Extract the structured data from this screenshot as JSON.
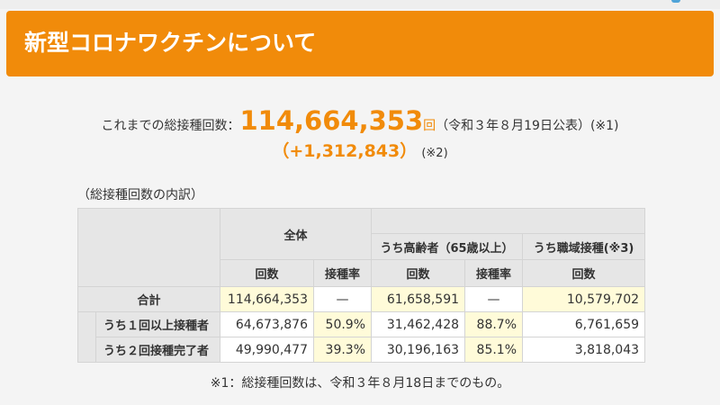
{
  "header": {
    "title": "新型コロナワクチンについて"
  },
  "summary": {
    "label": "これまでの総接種回数：",
    "total": "114,664,353",
    "unit": "回",
    "note": "（令和３年８月19日公表）(※1)",
    "increase": "（+1,312,843）",
    "increase_note": "(※2)"
  },
  "breakdown": {
    "heading": "（総接種回数の内訳）",
    "groups": {
      "overall": "全体",
      "elderly": "うち高齢者（65歳以上）",
      "workplace": "うち職域接種(※3)"
    },
    "columns": {
      "count": "回数",
      "rate": "接種率"
    },
    "rows": [
      {
        "label": "合計",
        "overall_count": "114,664,353",
        "overall_rate": "—",
        "elderly_count": "61,658,591",
        "elderly_rate": "—",
        "workplace_count": "10,579,702"
      },
      {
        "label": "うち１回以上接種者",
        "overall_count": "64,673,876",
        "overall_rate": "50.9%",
        "elderly_count": "31,462,428",
        "elderly_rate": "88.7%",
        "workplace_count": "6,761,659"
      },
      {
        "label": "うち２回接種完了者",
        "overall_count": "49,990,477",
        "overall_rate": "39.3%",
        "elderly_count": "30,196,163",
        "elderly_rate": "85.1%",
        "workplace_count": "3,818,043"
      }
    ]
  },
  "footnote": "※1：総接種回数は、令和３年８月18日までのもの。",
  "colors": {
    "accent": "#f18b0a",
    "highlight": "#fffbd9",
    "header_cell": "#e6e6e6"
  }
}
